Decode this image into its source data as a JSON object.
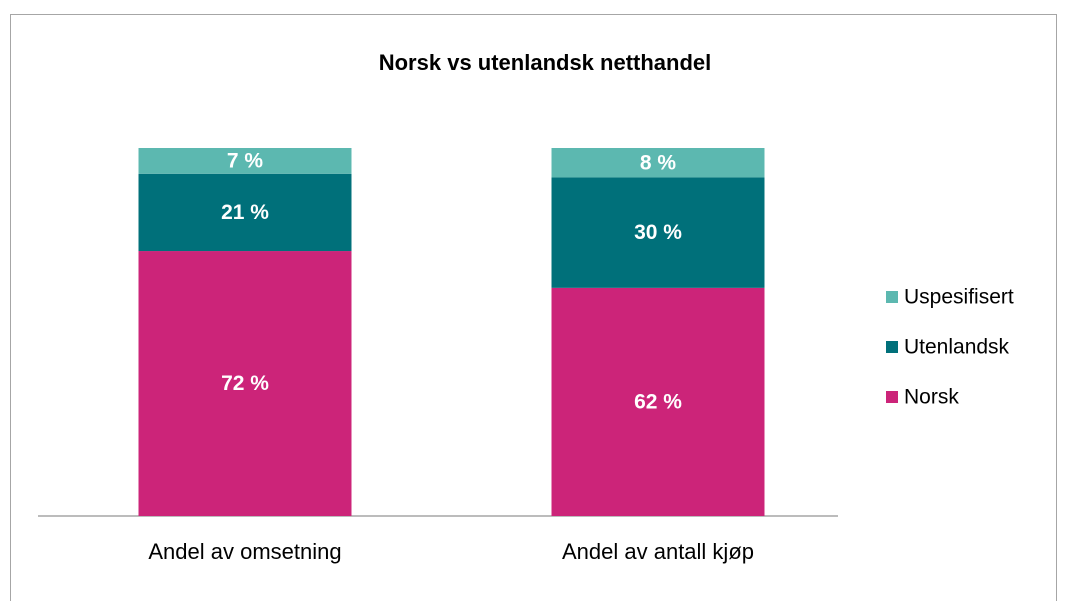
{
  "chart_data": {
    "type": "stacked_bar",
    "title": "Norsk vs utenlandsk netthandel",
    "categories": [
      "Andel av omsetning",
      "Andel av antall kjøp"
    ],
    "series": [
      {
        "name": "Norsk",
        "color": "#cc2479",
        "values": [
          72,
          62
        ],
        "value_labels": [
          "72 %",
          "62 %"
        ]
      },
      {
        "name": "Utenlandsk",
        "color": "#00707a",
        "values": [
          21,
          30
        ],
        "value_labels": [
          "21 %",
          "30 %"
        ]
      },
      {
        "name": "Uspesifisert",
        "color": "#5cb8b0",
        "values": [
          7,
          8
        ],
        "value_labels": [
          "7 %",
          "8 %"
        ]
      }
    ],
    "legend": "right"
  }
}
